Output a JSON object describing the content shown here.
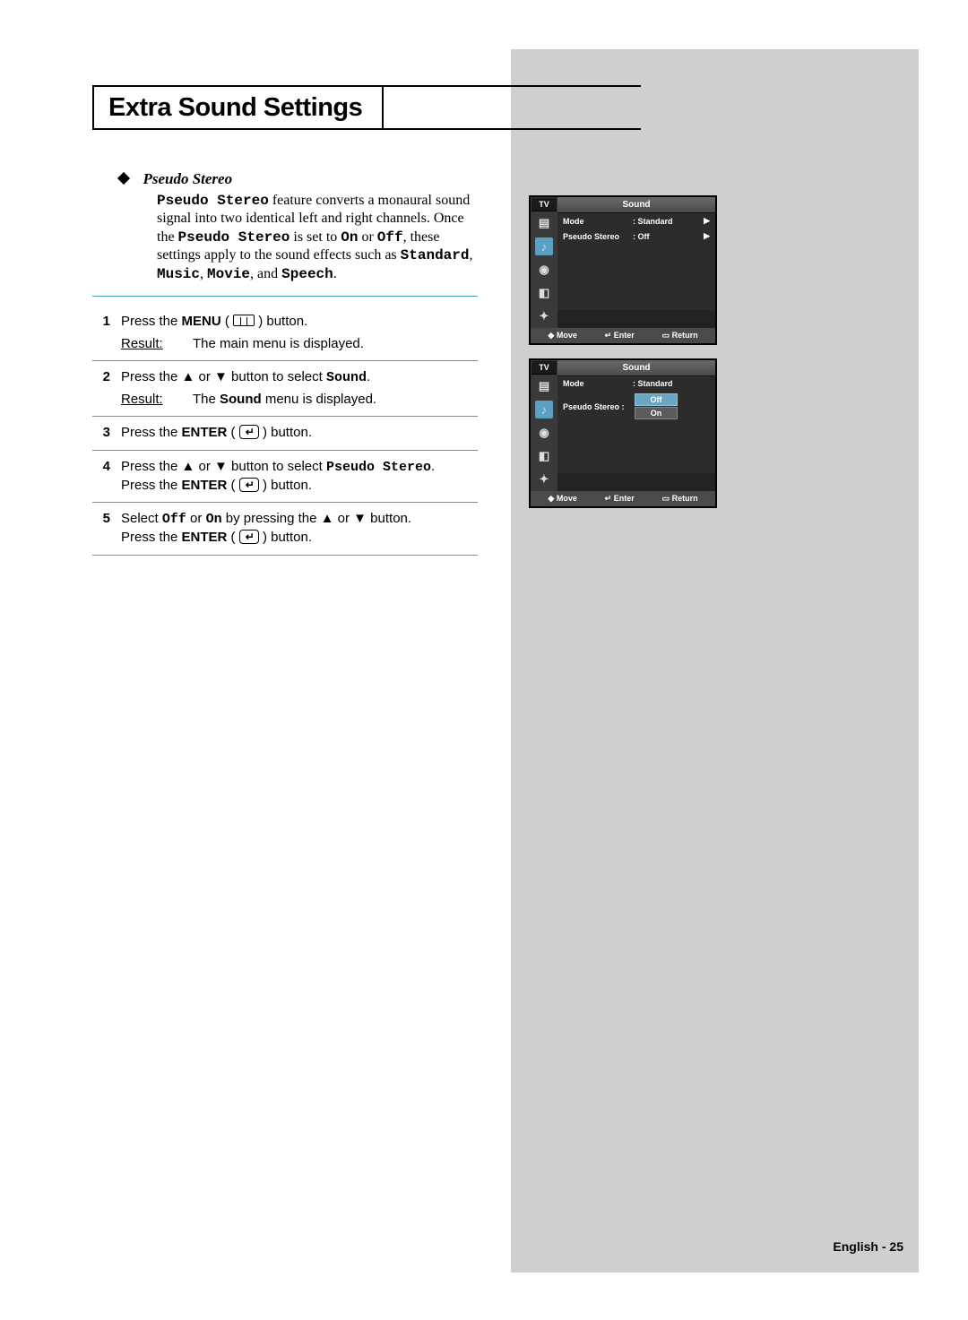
{
  "title": "Extra Sound Settings",
  "subhead": "Pseudo Stereo",
  "para_parts": {
    "p1a": "Pseudo Stereo",
    "p1b": " feature converts a monaural sound signal into two identical left and right channels. Once the ",
    "p1c": "Pseudo Stereo",
    "p1d": " is set to ",
    "p1e": "On",
    "p1f": " or ",
    "p1g": "Off",
    "p1h": ", these settings apply to the sound effects such as ",
    "p1i": "Standard",
    "p1j": ", ",
    "p1k": "Music",
    "p1l": ", ",
    "p1m": "Movie",
    "p1n": ", and ",
    "p1o": "Speech",
    "p1p": "."
  },
  "steps": {
    "s1": {
      "num": "1",
      "a": "Press the ",
      "b": "MENU",
      "c": " ( ",
      "d": " ) button.",
      "res_label": "Result:",
      "res_text": "The main menu is displayed."
    },
    "s2": {
      "num": "2",
      "a": "Press the ▲ or ▼ button to select ",
      "b": "Sound",
      "c": ".",
      "res_label": "Result:",
      "res_pre": "The ",
      "res_b": "Sound",
      "res_post": " menu is displayed."
    },
    "s3": {
      "num": "3",
      "a": "Press the ",
      "b": "ENTER",
      "c": " ( ",
      "d": " ) button."
    },
    "s4": {
      "num": "4",
      "a": "Press the ▲ or ▼ button to select ",
      "b": "Pseudo Stereo",
      "c": ".",
      "d": "Press the ",
      "e": "ENTER",
      "f": " ( ",
      "g": " ) button."
    },
    "s5": {
      "num": "5",
      "a": "Select ",
      "b": "Off",
      "c": " or ",
      "d": "On",
      "e": " by pressing the ▲ or ▼ button.",
      "f": "Press the ",
      "g": "ENTER",
      "h": " ( ",
      "i": " ) button."
    }
  },
  "enter_glyph": "↵",
  "osd": {
    "tv": "TV",
    "title": "Sound",
    "mode_k": "Mode",
    "mode_v": ": Standard",
    "ps_k": "Pseudo Stereo",
    "ps_v": ": Off",
    "ps_k2": "Pseudo Stereo :",
    "opt_off": "Off",
    "opt_on": "On",
    "foot_move": "Move",
    "foot_enter": "Enter",
    "foot_return": "Return",
    "arrow": "▶",
    "move_sym": "◆",
    "enter_sym": "↵",
    "return_sym": "▭"
  },
  "footer": "English - 25"
}
